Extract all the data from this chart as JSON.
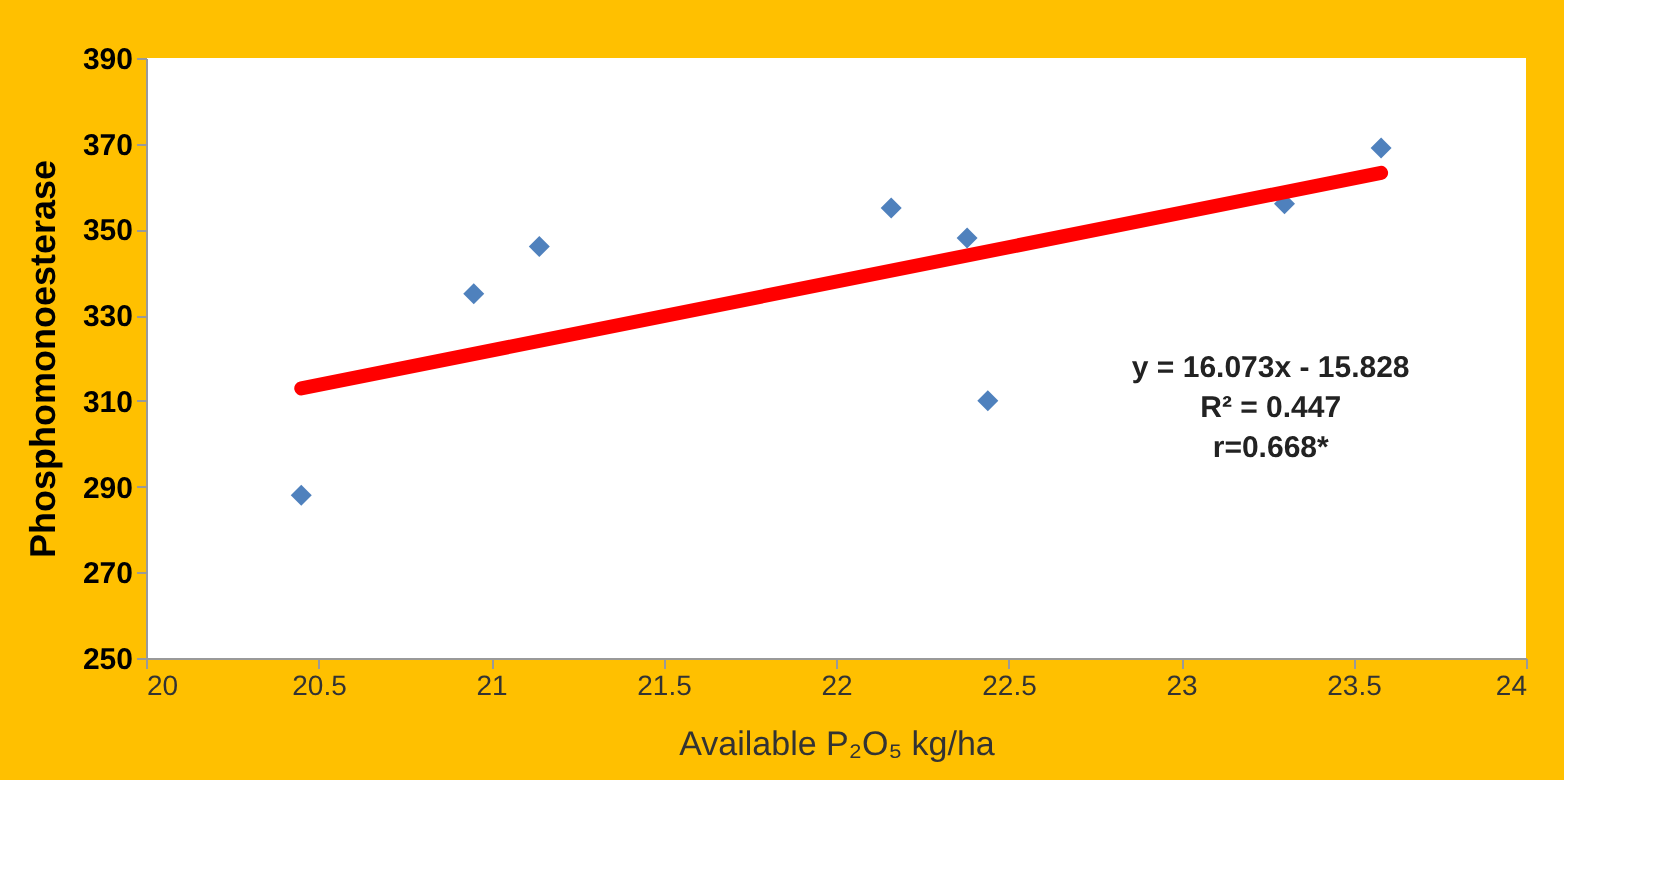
{
  "chart_data": {
    "type": "scatter",
    "xlabel": "Available P₂O₅ kg/ha",
    "ylabel": "Phosphomonoesterase",
    "xlim": [
      20,
      24
    ],
    "xticks": [
      20,
      20.5,
      21,
      21.5,
      22,
      22.5,
      23,
      23.5,
      24
    ],
    "ylim": [
      250,
      390
    ],
    "yticks": [
      250,
      270,
      290,
      310,
      330,
      350,
      370,
      390
    ],
    "grid": false,
    "series": [
      {
        "marker": "diamond",
        "color": "#4f81bd",
        "x": [
          20.45,
          20.95,
          21.14,
          22.16,
          22.38,
          22.44,
          23.3,
          23.58
        ],
        "values": [
          288,
          335,
          346,
          355,
          348,
          310,
          356,
          369
        ]
      },
      {
        "type": "line",
        "marker": "none",
        "color": "#ff0000",
        "x": [
          20.45,
          23.58
        ],
        "values": [
          312.9,
          363.2
        ]
      }
    ],
    "annotations": [
      "y = 16.073x - 15.828",
      "R² = 0.447",
      "r=0.668*"
    ]
  }
}
